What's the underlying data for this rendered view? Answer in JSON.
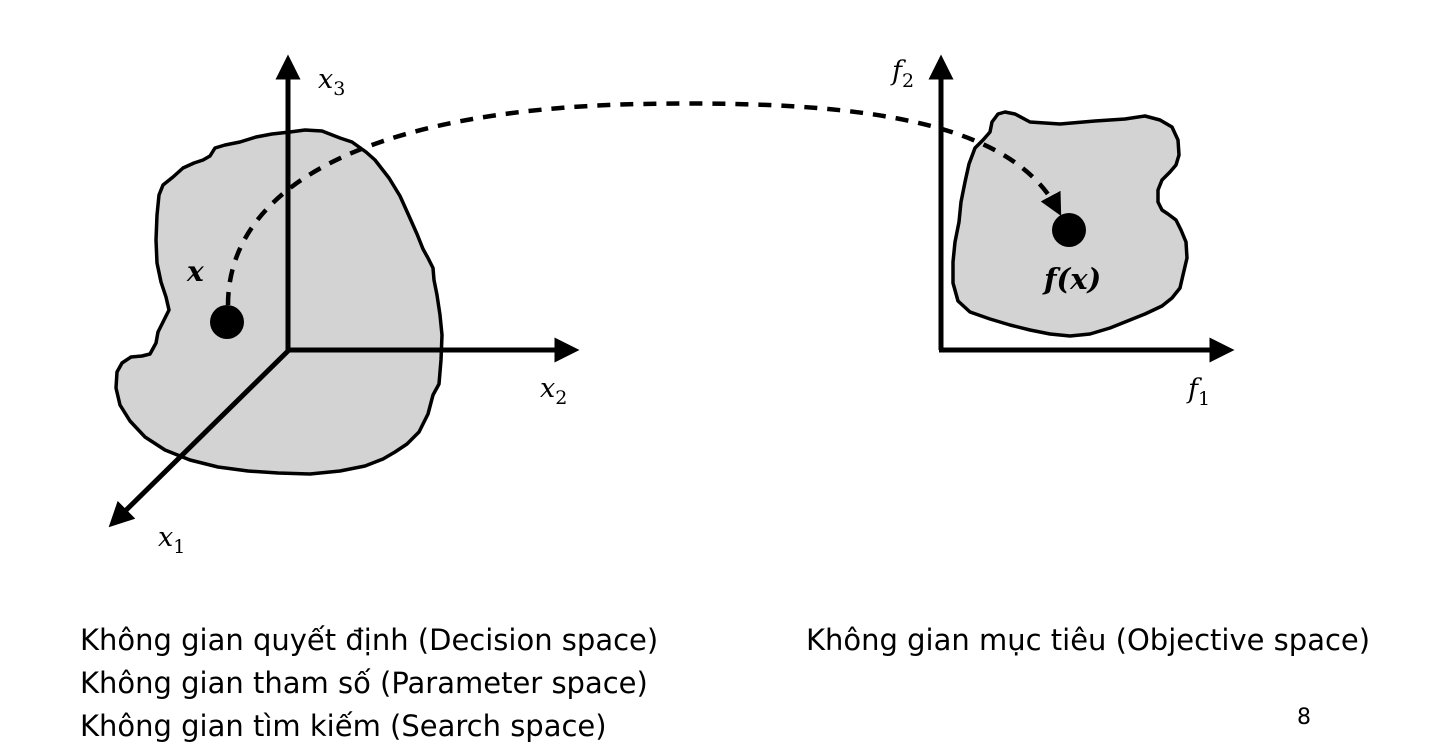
{
  "decision_space": {
    "axes": {
      "x1": {
        "base": "x",
        "sub": "1"
      },
      "x2": {
        "base": "x",
        "sub": "2"
      },
      "x3": {
        "base": "x",
        "sub": "3"
      }
    },
    "point_label": "x",
    "captions": [
      "Không gian quyết định (Decision space)",
      "Không gian tham số (Parameter space)",
      "Không gian tìm kiếm (Search space)"
    ]
  },
  "objective_space": {
    "axes": {
      "f1": {
        "base": "f",
        "sub": "1"
      },
      "f2": {
        "base": "f",
        "sub": "2"
      }
    },
    "point_label": "f(x)",
    "caption": "Không gian mục tiêu (Objective space)"
  },
  "colors": {
    "region_fill": "#d3d3d3",
    "stroke": "#000000",
    "background": "#ffffff"
  },
  "page_number": "8"
}
